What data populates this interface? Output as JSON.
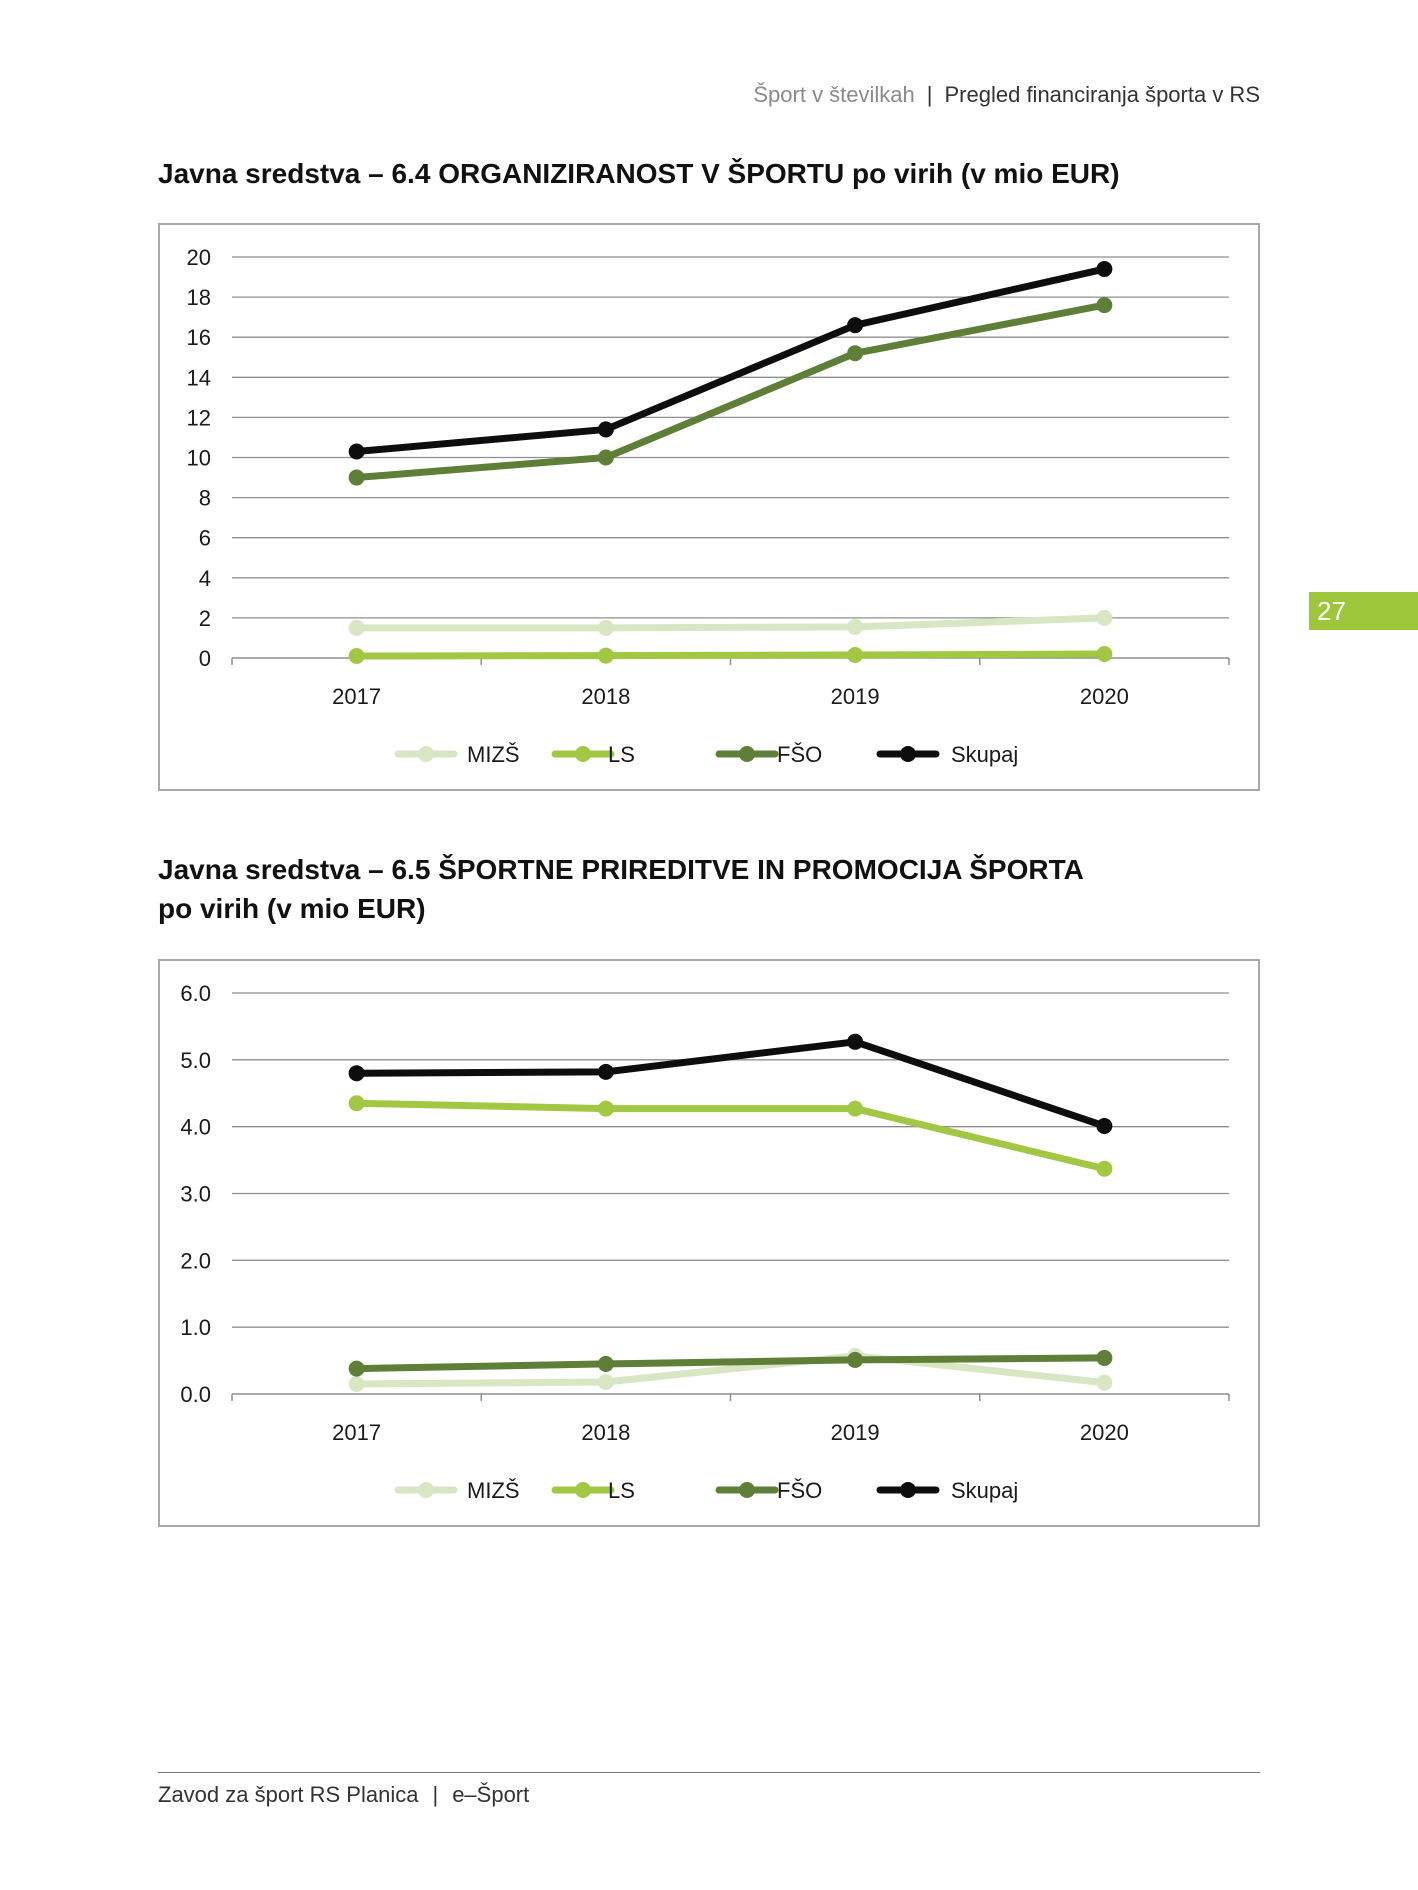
{
  "header": {
    "left": "Šport v številkah",
    "separator": "|",
    "right": "Pregled financiranja športa v RS"
  },
  "page_number": "27",
  "footer": {
    "left": "Zavod za šport RS Planica",
    "separator": "|",
    "right": "e–Šport"
  },
  "colors": {
    "MIZS": "#d9e6c3",
    "LS": "#a2c843",
    "FSO": "#5f7f38",
    "Skupaj": "#0d0d0d",
    "accent": "#9dc63b"
  },
  "chart_data": [
    {
      "type": "line",
      "title": "Javna sredstva – 6.4 ORGANIZIRANOST V ŠPORTU po virih (v mio EUR)",
      "title_lines": [
        "Javna sredstva – 6.4 ORGANIZIRANOST V ŠPORTU po virih (v mio EUR)"
      ],
      "categories": [
        "2017",
        "2018",
        "2019",
        "2020"
      ],
      "ylim": [
        0,
        20
      ],
      "yticks": [
        0,
        2,
        4,
        6,
        8,
        10,
        12,
        14,
        16,
        18,
        20
      ],
      "ytick_labels": [
        "0",
        "2",
        "4",
        "6",
        "8",
        "10",
        "12",
        "14",
        "16",
        "18",
        "20"
      ],
      "grid": true,
      "legend_position": "bottom",
      "series": [
        {
          "name": "MIZŠ",
          "key": "MIZS",
          "values": [
            1.5,
            1.5,
            1.55,
            2.0
          ]
        },
        {
          "name": "LS",
          "key": "LS",
          "values": [
            0.1,
            0.12,
            0.15,
            0.2
          ]
        },
        {
          "name": "FŠO",
          "key": "FSO",
          "values": [
            9.0,
            10.0,
            15.2,
            17.6
          ]
        },
        {
          "name": "Skupaj",
          "key": "Skupaj",
          "values": [
            10.3,
            11.4,
            16.6,
            19.4
          ]
        }
      ]
    },
    {
      "type": "line",
      "title": "Javna sredstva – 6.5 ŠPORTNE PRIREDITVE IN PROMOCIJA ŠPORTA po virih (v mio EUR)",
      "title_lines": [
        "Javna sredstva – 6.5 ŠPORTNE PRIREDITVE IN PROMOCIJA ŠPORTA",
        "po virih (v mio EUR)"
      ],
      "categories": [
        "2017",
        "2018",
        "2019",
        "2020"
      ],
      "ylim": [
        0,
        6
      ],
      "yticks": [
        0,
        1,
        2,
        3,
        4,
        5,
        6
      ],
      "ytick_labels": [
        "0.0",
        "1.0",
        "2.0",
        "3.0",
        "4.0",
        "5.0",
        "6.0"
      ],
      "grid": true,
      "legend_position": "bottom",
      "series": [
        {
          "name": "MIZŠ",
          "key": "MIZS",
          "values": [
            0.15,
            0.18,
            0.57,
            0.17
          ]
        },
        {
          "name": "LS",
          "key": "LS",
          "values": [
            4.35,
            4.27,
            4.27,
            3.37
          ]
        },
        {
          "name": "FŠO",
          "key": "FSO",
          "values": [
            0.38,
            0.45,
            0.51,
            0.54
          ]
        },
        {
          "name": "Skupaj",
          "key": "Skupaj",
          "values": [
            4.8,
            4.82,
            5.27,
            4.01
          ]
        }
      ]
    }
  ]
}
